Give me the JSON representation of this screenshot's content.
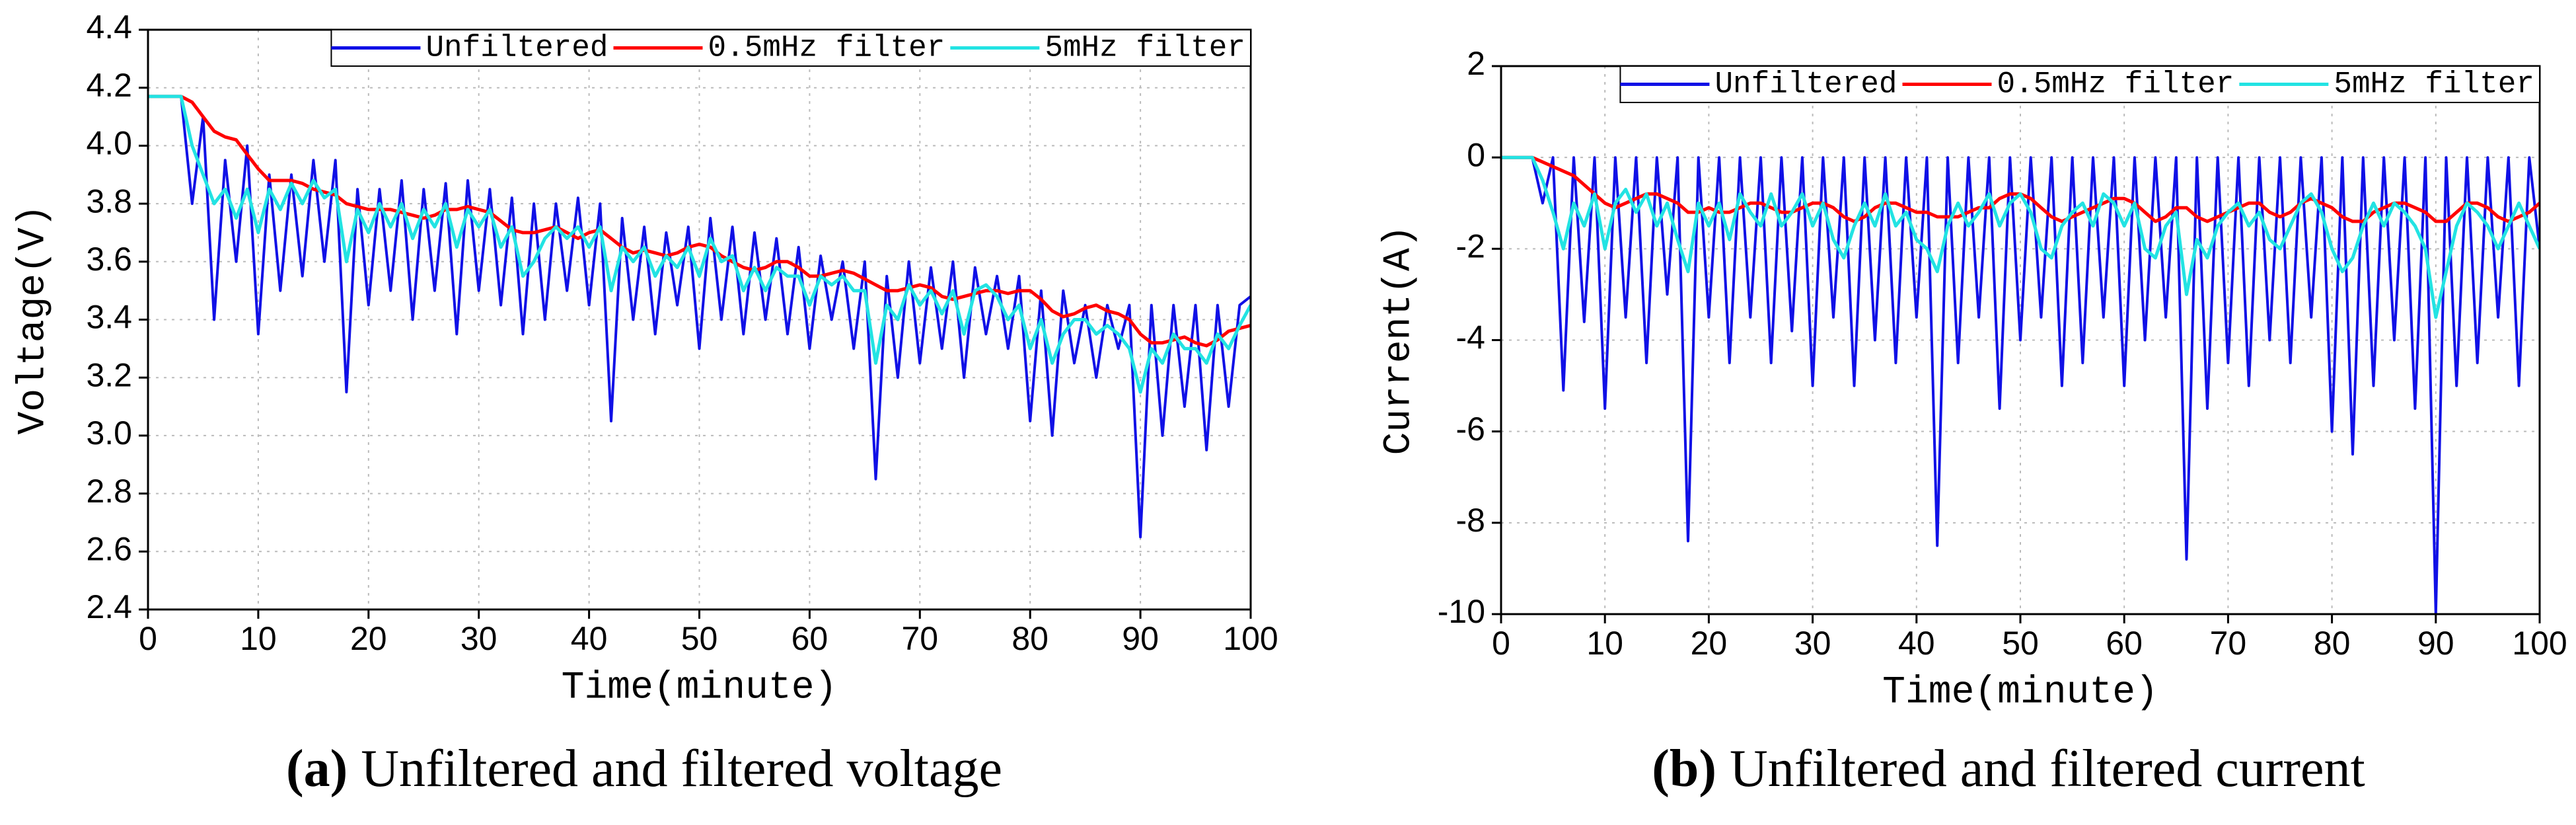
{
  "chart_data": [
    {
      "type": "line",
      "xlabel": "Time(minute)",
      "ylabel": "Voltage(V)",
      "caption_label": "(a)",
      "caption": "Unfiltered and filtered voltage",
      "xlim": [
        0,
        100
      ],
      "xticks": [
        0,
        10,
        20,
        30,
        40,
        50,
        60,
        70,
        80,
        90,
        100
      ],
      "ylim": [
        2.4,
        4.4
      ],
      "yticks": [
        2.4,
        2.6,
        2.8,
        {
          "value": 3,
          "label": "3.0"
        },
        3.2,
        3.4,
        3.6,
        3.8,
        {
          "value": 4,
          "label": "4.0"
        },
        4.2,
        4.4
      ],
      "grid": true,
      "legend": "upper right",
      "x": [
        0,
        1,
        2,
        3,
        4,
        5,
        6,
        7,
        8,
        9,
        10,
        11,
        12,
        13,
        14,
        15,
        16,
        17,
        18,
        19,
        20,
        21,
        22,
        23,
        24,
        25,
        26,
        27,
        28,
        29,
        30,
        31,
        32,
        33,
        34,
        35,
        36,
        37,
        38,
        39,
        40,
        41,
        42,
        43,
        44,
        45,
        46,
        47,
        48,
        49,
        50,
        51,
        52,
        53,
        54,
        55,
        56,
        57,
        58,
        59,
        60,
        61,
        62,
        63,
        64,
        65,
        66,
        67,
        68,
        69,
        70,
        71,
        72,
        73,
        74,
        75,
        76,
        77,
        78,
        79,
        80,
        81,
        82,
        83,
        84,
        85,
        86,
        87,
        88,
        89,
        90,
        91,
        92,
        93,
        94,
        95,
        96,
        97,
        98,
        99,
        100
      ],
      "series": [
        {
          "name": "Unfiltered",
          "color": "#1010e6",
          "values": [
            4.17,
            4.17,
            4.17,
            4.17,
            3.8,
            4.1,
            3.4,
            3.95,
            3.6,
            4.0,
            3.35,
            3.9,
            3.5,
            3.9,
            3.55,
            3.95,
            3.6,
            3.95,
            3.15,
            3.85,
            3.45,
            3.85,
            3.5,
            3.88,
            3.4,
            3.85,
            3.5,
            3.87,
            3.35,
            3.88,
            3.5,
            3.85,
            3.45,
            3.82,
            3.35,
            3.8,
            3.4,
            3.8,
            3.5,
            3.82,
            3.45,
            3.8,
            3.05,
            3.75,
            3.4,
            3.72,
            3.35,
            3.7,
            3.45,
            3.72,
            3.3,
            3.75,
            3.4,
            3.72,
            3.35,
            3.7,
            3.4,
            3.68,
            3.35,
            3.65,
            3.3,
            3.62,
            3.4,
            3.6,
            3.3,
            3.6,
            2.85,
            3.55,
            3.2,
            3.6,
            3.25,
            3.58,
            3.3,
            3.6,
            3.2,
            3.58,
            3.35,
            3.55,
            3.3,
            3.55,
            3.05,
            3.5,
            3.0,
            3.5,
            3.25,
            3.45,
            3.2,
            3.45,
            3.3,
            3.45,
            2.65,
            3.45,
            3.0,
            3.45,
            3.1,
            3.45,
            2.95,
            3.45,
            3.1,
            3.45,
            3.48
          ]
        },
        {
          "name": "0.5mHz filter",
          "color": "#ff0000",
          "values": [
            4.17,
            4.17,
            4.17,
            4.17,
            4.15,
            4.1,
            4.05,
            4.03,
            4.02,
            3.97,
            3.92,
            3.88,
            3.88,
            3.88,
            3.87,
            3.85,
            3.84,
            3.83,
            3.8,
            3.79,
            3.78,
            3.78,
            3.78,
            3.77,
            3.76,
            3.75,
            3.76,
            3.78,
            3.78,
            3.79,
            3.78,
            3.77,
            3.74,
            3.71,
            3.7,
            3.7,
            3.71,
            3.72,
            3.7,
            3.68,
            3.7,
            3.71,
            3.68,
            3.65,
            3.63,
            3.64,
            3.63,
            3.62,
            3.63,
            3.65,
            3.66,
            3.65,
            3.62,
            3.6,
            3.58,
            3.57,
            3.58,
            3.6,
            3.6,
            3.58,
            3.55,
            3.55,
            3.56,
            3.57,
            3.56,
            3.54,
            3.52,
            3.5,
            3.5,
            3.51,
            3.52,
            3.51,
            3.48,
            3.47,
            3.48,
            3.49,
            3.5,
            3.5,
            3.49,
            3.5,
            3.5,
            3.47,
            3.43,
            3.41,
            3.42,
            3.44,
            3.45,
            3.43,
            3.42,
            3.4,
            3.35,
            3.32,
            3.32,
            3.33,
            3.34,
            3.32,
            3.31,
            3.33,
            3.36,
            3.37,
            3.38
          ]
        },
        {
          "name": "5mHz filter",
          "color": "#22e3e3",
          "values": [
            4.17,
            4.17,
            4.17,
            4.17,
            4.0,
            3.9,
            3.8,
            3.85,
            3.75,
            3.85,
            3.7,
            3.85,
            3.78,
            3.87,
            3.8,
            3.88,
            3.82,
            3.85,
            3.6,
            3.78,
            3.7,
            3.8,
            3.72,
            3.8,
            3.68,
            3.78,
            3.72,
            3.8,
            3.65,
            3.78,
            3.72,
            3.78,
            3.65,
            3.72,
            3.55,
            3.6,
            3.68,
            3.72,
            3.68,
            3.72,
            3.65,
            3.72,
            3.5,
            3.65,
            3.6,
            3.65,
            3.55,
            3.62,
            3.58,
            3.65,
            3.55,
            3.68,
            3.6,
            3.62,
            3.5,
            3.58,
            3.5,
            3.58,
            3.55,
            3.55,
            3.45,
            3.55,
            3.52,
            3.55,
            3.5,
            3.5,
            3.25,
            3.45,
            3.4,
            3.52,
            3.45,
            3.5,
            3.42,
            3.5,
            3.35,
            3.5,
            3.52,
            3.48,
            3.4,
            3.45,
            3.3,
            3.4,
            3.25,
            3.35,
            3.4,
            3.4,
            3.35,
            3.38,
            3.35,
            3.3,
            3.15,
            3.3,
            3.25,
            3.35,
            3.3,
            3.3,
            3.25,
            3.35,
            3.3,
            3.38,
            3.45
          ]
        }
      ]
    },
    {
      "type": "line",
      "xlabel": "Time(minute)",
      "ylabel": "Current(A)",
      "caption_label": "(b)",
      "caption": "Unfiltered and filtered current",
      "xlim": [
        0,
        100
      ],
      "xticks": [
        0,
        10,
        20,
        30,
        40,
        50,
        60,
        70,
        80,
        90,
        100
      ],
      "ylim": [
        -10,
        2
      ],
      "yticks": [
        -10,
        -8,
        -6,
        -4,
        -2,
        0,
        2
      ],
      "grid": true,
      "legend": "upper right",
      "x": [
        0,
        1,
        2,
        3,
        4,
        5,
        6,
        7,
        8,
        9,
        10,
        11,
        12,
        13,
        14,
        15,
        16,
        17,
        18,
        19,
        20,
        21,
        22,
        23,
        24,
        25,
        26,
        27,
        28,
        29,
        30,
        31,
        32,
        33,
        34,
        35,
        36,
        37,
        38,
        39,
        40,
        41,
        42,
        43,
        44,
        45,
        46,
        47,
        48,
        49,
        50,
        51,
        52,
        53,
        54,
        55,
        56,
        57,
        58,
        59,
        60,
        61,
        62,
        63,
        64,
        65,
        66,
        67,
        68,
        69,
        70,
        71,
        72,
        73,
        74,
        75,
        76,
        77,
        78,
        79,
        80,
        81,
        82,
        83,
        84,
        85,
        86,
        87,
        88,
        89,
        90,
        91,
        92,
        93,
        94,
        95,
        96,
        97,
        98,
        99,
        100
      ],
      "series": [
        {
          "name": "Unfiltered",
          "color": "#1010e6",
          "values": [
            0,
            0,
            0,
            0,
            -1,
            0,
            -5.1,
            0,
            -3.6,
            0,
            -5.5,
            0,
            -3.5,
            0,
            -4.5,
            0,
            -3,
            0,
            -8.4,
            0,
            -3.5,
            0,
            -4.5,
            0,
            -3.5,
            0,
            -4.5,
            0,
            -3.8,
            0,
            -5,
            0,
            -3.5,
            0,
            -5,
            0,
            -4,
            0,
            -4.5,
            0,
            -3.5,
            0,
            -8.5,
            0,
            -4.5,
            0,
            -3.5,
            0,
            -5.5,
            0,
            -4,
            0,
            -3.5,
            0,
            -5,
            0,
            -4.5,
            0,
            -3.5,
            0,
            -5,
            0,
            -4,
            0,
            -3.5,
            0,
            -8.8,
            0,
            -5.5,
            0,
            -4.5,
            0,
            -5,
            0,
            -4,
            0,
            -4.5,
            0,
            -3.5,
            0,
            -6,
            0,
            -6.5,
            0,
            -5,
            0,
            -4,
            0,
            -5.5,
            0,
            -10,
            0,
            -5,
            0,
            -4.5,
            0,
            -3.5,
            0,
            -5,
            0,
            -2
          ]
        },
        {
          "name": "0.5mHz filter",
          "color": "#ff0000",
          "values": [
            0,
            0,
            0,
            0,
            -0.1,
            -0.2,
            -0.3,
            -0.4,
            -0.6,
            -0.8,
            -1.0,
            -1.1,
            -1.0,
            -0.9,
            -0.8,
            -0.8,
            -0.9,
            -1.0,
            -1.2,
            -1.2,
            -1.1,
            -1.2,
            -1.2,
            -1.1,
            -1.0,
            -1.0,
            -1.1,
            -1.2,
            -1.2,
            -1.1,
            -1.0,
            -1.0,
            -1.1,
            -1.3,
            -1.4,
            -1.3,
            -1.1,
            -1.0,
            -1.0,
            -1.1,
            -1.2,
            -1.2,
            -1.3,
            -1.3,
            -1.3,
            -1.2,
            -1.1,
            -1.1,
            -0.9,
            -0.8,
            -0.8,
            -0.9,
            -1.1,
            -1.3,
            -1.4,
            -1.3,
            -1.2,
            -1.1,
            -1.0,
            -0.9,
            -0.9,
            -1.0,
            -1.2,
            -1.4,
            -1.3,
            -1.1,
            -1.1,
            -1.3,
            -1.4,
            -1.3,
            -1.2,
            -1.1,
            -1.0,
            -1.0,
            -1.2,
            -1.3,
            -1.2,
            -1.0,
            -0.9,
            -1.0,
            -1.1,
            -1.3,
            -1.4,
            -1.4,
            -1.2,
            -1.1,
            -1.0,
            -1.0,
            -1.1,
            -1.2,
            -1.4,
            -1.4,
            -1.2,
            -1.0,
            -1.0,
            -1.1,
            -1.3,
            -1.4,
            -1.3,
            -1.2,
            -1.0
          ]
        },
        {
          "name": "5mHz filter",
          "color": "#22e3e3",
          "values": [
            0,
            0,
            0,
            0,
            -0.5,
            -1.2,
            -2,
            -1,
            -1.5,
            -0.8,
            -2,
            -1,
            -0.7,
            -1.2,
            -0.8,
            -1.5,
            -1,
            -1.8,
            -2.5,
            -1,
            -1.5,
            -1,
            -1.8,
            -0.8,
            -1.2,
            -1.5,
            -0.8,
            -1.5,
            -1.2,
            -0.8,
            -1.5,
            -1,
            -1.8,
            -2.2,
            -1.5,
            -1,
            -1.5,
            -0.8,
            -1.5,
            -1.2,
            -1.8,
            -2,
            -2.5,
            -1.5,
            -1,
            -1.5,
            -1.2,
            -0.8,
            -1.5,
            -1,
            -0.8,
            -1.2,
            -2,
            -2.2,
            -1.5,
            -1.2,
            -1,
            -1.5,
            -0.8,
            -1,
            -1.5,
            -1,
            -2,
            -2.2,
            -1.5,
            -1.2,
            -3,
            -1.8,
            -2.2,
            -1.5,
            -1.2,
            -1,
            -1.5,
            -1.2,
            -1.8,
            -2,
            -1.5,
            -1,
            -0.8,
            -1.2,
            -2,
            -2.5,
            -2.2,
            -1.5,
            -1,
            -1.5,
            -1,
            -1.2,
            -1.5,
            -2,
            -3.5,
            -2.5,
            -1.5,
            -1,
            -1.2,
            -1.5,
            -2,
            -1.5,
            -1,
            -1.5,
            -2
          ]
        }
      ]
    }
  ]
}
